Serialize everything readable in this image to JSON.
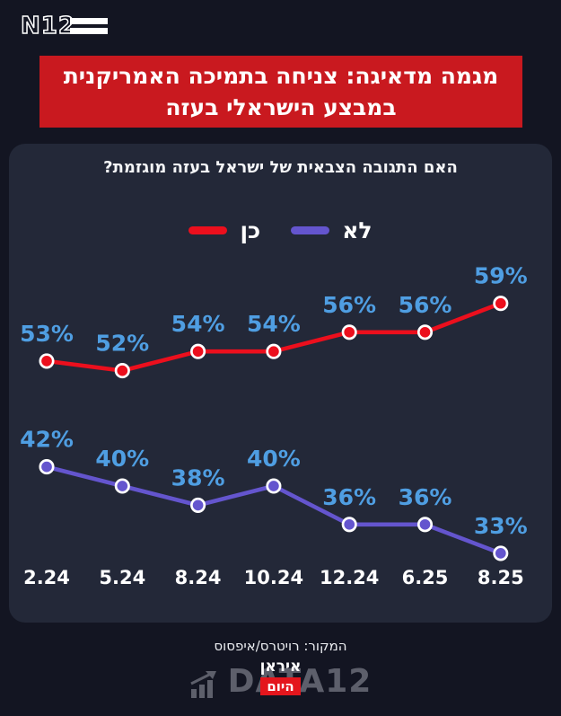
{
  "page": {
    "bg": "#131522"
  },
  "header": {
    "logo_text": "N12"
  },
  "banner": {
    "bg": "#c9191f",
    "line1": "מגמה מדאיגה: צניחה בתמיכה האמריקנית",
    "line2": "במבצע הישראלי בעזה"
  },
  "card": {
    "bg": "#232838",
    "title": "האם התגובה הצבאית של ישראל בעזה מוגזמת?"
  },
  "chart_data": {
    "type": "line",
    "title": "האם התגובה הצבאית של ישראל בעזה מוגזמת?",
    "categories": [
      "2.24",
      "5.24",
      "8.24",
      "10.24",
      "12.24",
      "6.25",
      "8.25"
    ],
    "series": [
      {
        "name": "כן",
        "color": "#ec0f1d",
        "values": [
          53,
          52,
          54,
          54,
          56,
          56,
          59
        ]
      },
      {
        "name": "לא",
        "color": "#6455ce",
        "values": [
          42,
          40,
          38,
          40,
          36,
          36,
          33
        ]
      }
    ],
    "value_suffix": "%",
    "label_color": "#4f9ee2",
    "axis_label_color": "#ffffff",
    "point_stroke": "#ffffff",
    "ylim": [
      0,
      100
    ],
    "grid": false,
    "legend_position": "top-center"
  },
  "footer": {
    "source": "המקור: רויטרס/איפסוס",
    "overlay_top": "איראן",
    "overlay_bottom": "היום",
    "overlay_bottom_bg": "#e4161d",
    "watermark": "DATA12"
  }
}
